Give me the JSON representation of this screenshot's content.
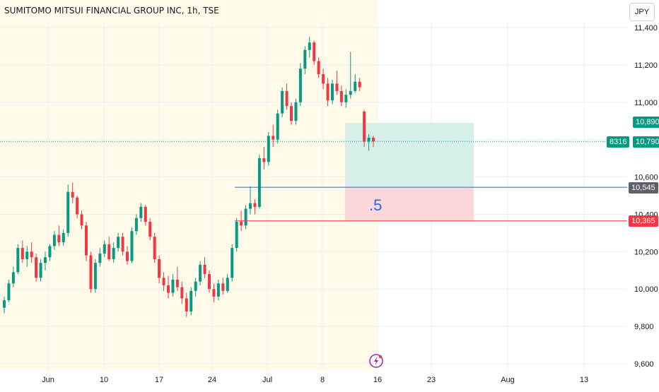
{
  "header": {
    "title": "SUMITOMO MITSUI FINANCIAL GROUP INC, 1h, TSE",
    "currency": "JPY"
  },
  "colors": {
    "up": "#089981",
    "down": "#f23645",
    "session_bg": "#fffbe8",
    "target_zone": "#d6efe8",
    "stop_zone": "#fcd7d8",
    "entry_line": "#2962ff",
    "stop_line": "#f23645",
    "grid": "#eef0f3"
  },
  "price_tags": {
    "target": "10,890",
    "current": "10,790",
    "entry": "10,545",
    "stop": "10,365",
    "symbol_code": "8316"
  },
  "annotation": {
    "ratio_text": ".5"
  },
  "chart_data": {
    "type": "candlestick",
    "title": "SUMITOMO MITSUI FINANCIAL GROUP INC, 1h, TSE",
    "y_ticks": [
      "11,400",
      "11,200",
      "11,000",
      "10,800",
      "10,600",
      "10,400",
      "10,200",
      "10,000",
      "9,800",
      "9,600"
    ],
    "x_ticks": [
      "Jun",
      "10",
      "17",
      "24",
      "Jul",
      "8",
      "16",
      "23",
      "Aug",
      "13"
    ],
    "ylim": [
      9580,
      11480
    ],
    "grid": true,
    "series": [
      {
        "values": [
          [
            9900,
            9960,
            9870,
            9940
          ],
          [
            9940,
            10050,
            9930,
            10030
          ],
          [
            10030,
            10120,
            10010,
            10090
          ],
          [
            10090,
            10240,
            10080,
            10220
          ],
          [
            10220,
            10260,
            10140,
            10160
          ],
          [
            10160,
            10230,
            10120,
            10200
          ],
          [
            10200,
            10250,
            10140,
            10170
          ],
          [
            10170,
            10190,
            10040,
            10060
          ],
          [
            10060,
            10160,
            10040,
            10140
          ],
          [
            10140,
            10200,
            10100,
            10170
          ],
          [
            10170,
            10240,
            10150,
            10230
          ],
          [
            10230,
            10310,
            10210,
            10290
          ],
          [
            10290,
            10340,
            10230,
            10250
          ],
          [
            10250,
            10320,
            10230,
            10300
          ],
          [
            10300,
            10560,
            10280,
            10520
          ],
          [
            10520,
            10570,
            10460,
            10490
          ],
          [
            10490,
            10500,
            10380,
            10400
          ],
          [
            10400,
            10420,
            10320,
            10340
          ],
          [
            10340,
            10360,
            10150,
            10180
          ],
          [
            10180,
            10200,
            9980,
            10000
          ],
          [
            10000,
            10160,
            9980,
            10140
          ],
          [
            10140,
            10220,
            10120,
            10190
          ],
          [
            10190,
            10260,
            10170,
            10240
          ],
          [
            10240,
            10280,
            10150,
            10160
          ],
          [
            10160,
            10250,
            10140,
            10220
          ],
          [
            10220,
            10300,
            10200,
            10280
          ],
          [
            10280,
            10300,
            10180,
            10200
          ],
          [
            10200,
            10230,
            10130,
            10150
          ],
          [
            10150,
            10330,
            10140,
            10310
          ],
          [
            10310,
            10400,
            10290,
            10380
          ],
          [
            10380,
            10460,
            10360,
            10440
          ],
          [
            10440,
            10450,
            10340,
            10360
          ],
          [
            10360,
            10380,
            10260,
            10280
          ],
          [
            10280,
            10300,
            10140,
            10160
          ],
          [
            10160,
            10180,
            10030,
            10060
          ],
          [
            10060,
            10090,
            9990,
            10020
          ],
          [
            10020,
            10070,
            9950,
            9980
          ],
          [
            9980,
            10080,
            9960,
            10050
          ],
          [
            10050,
            10120,
            9990,
            10010
          ],
          [
            10010,
            10040,
            9920,
            9950
          ],
          [
            9950,
            9980,
            9850,
            9880
          ],
          [
            9880,
            10010,
            9860,
            9990
          ],
          [
            9990,
            10060,
            9960,
            10040
          ],
          [
            10040,
            10150,
            10020,
            10130
          ],
          [
            10130,
            10170,
            10060,
            10080
          ],
          [
            10080,
            10100,
            9980,
            10000
          ],
          [
            10000,
            10030,
            9930,
            9960
          ],
          [
            9960,
            10050,
            9940,
            10030
          ],
          [
            10030,
            10060,
            9970,
            9990
          ],
          [
            9990,
            10080,
            9980,
            10060
          ],
          [
            10060,
            10240,
            10040,
            10220
          ],
          [
            10220,
            10380,
            10200,
            10360
          ],
          [
            10360,
            10420,
            10310,
            10340
          ],
          [
            10340,
            10450,
            10320,
            10430
          ],
          [
            10430,
            10550,
            10400,
            10460
          ],
          [
            10460,
            10480,
            10400,
            10440
          ],
          [
            10440,
            10720,
            10430,
            10700
          ],
          [
            10700,
            10760,
            10640,
            10680
          ],
          [
            10680,
            10840,
            10660,
            10820
          ],
          [
            10820,
            10880,
            10760,
            10800
          ],
          [
            10800,
            10960,
            10780,
            10940
          ],
          [
            10940,
            11080,
            10920,
            11060
          ],
          [
            11060,
            11100,
            10960,
            10980
          ],
          [
            10980,
            11000,
            10880,
            10900
          ],
          [
            10900,
            11020,
            10880,
            11000
          ],
          [
            11000,
            11210,
            10980,
            11180
          ],
          [
            11180,
            11300,
            11150,
            11280
          ],
          [
            11280,
            11350,
            11240,
            11320
          ],
          [
            11320,
            11330,
            11200,
            11220
          ],
          [
            11220,
            11240,
            11130,
            11150
          ],
          [
            11150,
            11180,
            11070,
            11100
          ],
          [
            11100,
            11130,
            10980,
            11010
          ],
          [
            11010,
            11120,
            10990,
            11100
          ],
          [
            11100,
            11170,
            11040,
            11060
          ],
          [
            11060,
            11090,
            10980,
            11000
          ],
          [
            11000,
            11070,
            10970,
            11040
          ],
          [
            11040,
            11270,
            11020,
            11060
          ],
          [
            11060,
            11150,
            11050,
            11110
          ],
          [
            11110,
            11130,
            11060,
            11080
          ],
          [
            10950,
            10960,
            10760,
            10790
          ],
          [
            10790,
            10830,
            10740,
            10810
          ],
          [
            10810,
            10820,
            10760,
            10790
          ]
        ]
      }
    ]
  }
}
